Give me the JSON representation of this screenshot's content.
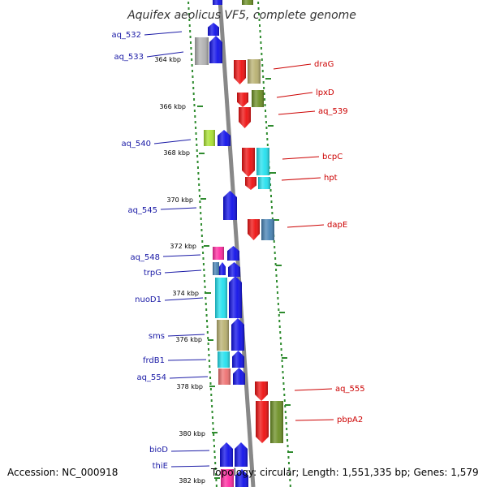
{
  "title": "Aquifex aeolicus VF5, complete genome",
  "footer": {
    "accession": "Accession: NC_000918",
    "topology": "Topology: circular; Length: 1,551,335 bp; Genes: 1,579"
  },
  "colors": {
    "backbone": "#888888",
    "tick": "#2e8b2e",
    "left_label": "#1a1aa6",
    "right_label": "#cc0000",
    "blue": "#1010e8",
    "red": "#ee1010",
    "cyan": "#22e0ee",
    "tan": "#b8b070",
    "olive": "#6b8e23",
    "gray": "#b0b0b0",
    "lime": "#a8e030",
    "pink": "#ff2aa0",
    "salmon": "#ee7070",
    "steel": "#4682b4"
  },
  "kbp_labels": [
    "364 kbp",
    "366 kbp",
    "368 kbp",
    "370 kbp",
    "372 kbp",
    "374 kbp",
    "376 kbp",
    "378 kbp",
    "380 kbp",
    "382 kbp"
  ],
  "left_labels": [
    "aq_532",
    "aq_533",
    "aq_540",
    "aq_545",
    "aq_548",
    "trpG",
    "nuoD1",
    "sms",
    "frdB1",
    "aq_554",
    "bioD",
    "thiE"
  ],
  "right_labels": [
    "draG",
    "lpxD",
    "aq_539",
    "bcpC",
    "hpt",
    "dapE",
    "aq_555",
    "pbpA2"
  ]
}
